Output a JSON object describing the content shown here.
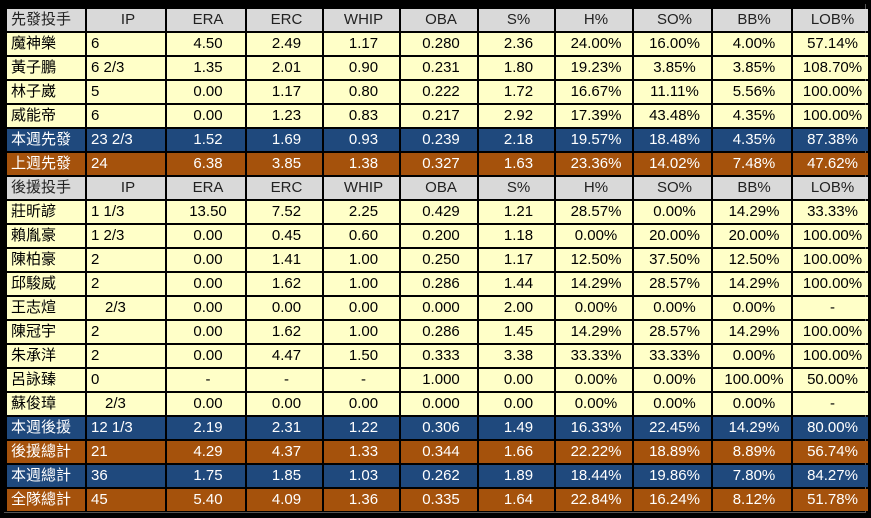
{
  "sections": [
    {
      "headers": [
        "先發投手",
        "IP",
        "ERA",
        "ERC",
        "WHIP",
        "OBA",
        "S%",
        "H%",
        "SO%",
        "BB%",
        "LOB%"
      ],
      "rows": [
        {
          "kind": "norm",
          "cells": [
            "魔神樂",
            "6",
            "4.50",
            "2.49",
            "1.17",
            "0.280",
            "2.36",
            "24.00%",
            "16.00%",
            "4.00%",
            "57.14%"
          ]
        },
        {
          "kind": "norm",
          "cells": [
            "黃子鵬",
            "6 2/3",
            "1.35",
            "2.01",
            "0.90",
            "0.231",
            "1.80",
            "19.23%",
            "3.85%",
            "3.85%",
            "108.70%"
          ]
        },
        {
          "kind": "norm",
          "cells": [
            "林子崴",
            "5",
            "0.00",
            "1.17",
            "0.80",
            "0.222",
            "1.72",
            "16.67%",
            "11.11%",
            "5.56%",
            "100.00%"
          ]
        },
        {
          "kind": "norm",
          "cells": [
            "威能帝",
            "6",
            "0.00",
            "1.23",
            "0.83",
            "0.217",
            "2.92",
            "17.39%",
            "43.48%",
            "4.35%",
            "100.00%"
          ]
        },
        {
          "kind": "blue",
          "cells": [
            "本週先發",
            "23 2/3",
            "1.52",
            "1.69",
            "0.93",
            "0.239",
            "2.18",
            "19.57%",
            "18.48%",
            "4.35%",
            "87.38%"
          ]
        },
        {
          "kind": "orange",
          "cells": [
            "上週先發",
            "24",
            "6.38",
            "3.85",
            "1.38",
            "0.327",
            "1.63",
            "23.36%",
            "14.02%",
            "7.48%",
            "47.62%"
          ]
        }
      ]
    },
    {
      "headers": [
        "後援投手",
        "IP",
        "ERA",
        "ERC",
        "WHIP",
        "OBA",
        "S%",
        "H%",
        "SO%",
        "BB%",
        "LOB%"
      ],
      "rows": [
        {
          "kind": "norm",
          "cells": [
            "莊昕諺",
            "1 1/3",
            "13.50",
            "7.52",
            "2.25",
            "0.429",
            "1.21",
            "28.57%",
            "0.00%",
            "14.29%",
            "33.33%"
          ]
        },
        {
          "kind": "norm",
          "cells": [
            "賴胤豪",
            "1 2/3",
            "0.00",
            "0.45",
            "0.60",
            "0.200",
            "1.18",
            "0.00%",
            "20.00%",
            "20.00%",
            "100.00%"
          ]
        },
        {
          "kind": "norm",
          "cells": [
            "陳柏豪",
            "2",
            "0.00",
            "1.41",
            "1.00",
            "0.250",
            "1.17",
            "12.50%",
            "37.50%",
            "12.50%",
            "100.00%"
          ]
        },
        {
          "kind": "norm",
          "cells": [
            "邱駿威",
            "2",
            "0.00",
            "1.62",
            "1.00",
            "0.286",
            "1.44",
            "14.29%",
            "28.57%",
            "14.29%",
            "100.00%"
          ]
        },
        {
          "kind": "norm",
          "cells": [
            "王志煊",
            "2/3",
            "0.00",
            "0.00",
            "0.00",
            "0.000",
            "2.00",
            "0.00%",
            "0.00%",
            "0.00%",
            "-"
          ]
        },
        {
          "kind": "norm",
          "cells": [
            "陳冠宇",
            "2",
            "0.00",
            "1.62",
            "1.00",
            "0.286",
            "1.45",
            "14.29%",
            "28.57%",
            "14.29%",
            "100.00%"
          ]
        },
        {
          "kind": "norm",
          "cells": [
            "朱承洋",
            "2",
            "0.00",
            "4.47",
            "1.50",
            "0.333",
            "3.38",
            "33.33%",
            "33.33%",
            "0.00%",
            "100.00%"
          ]
        },
        {
          "kind": "norm",
          "cells": [
            "呂詠臻",
            "0",
            "-",
            "-",
            "-",
            "1.000",
            "0.00",
            "0.00%",
            "0.00%",
            "100.00%",
            "50.00%"
          ]
        },
        {
          "kind": "norm",
          "cells": [
            "蘇俊璋",
            "2/3",
            "0.00",
            "0.00",
            "0.00",
            "0.000",
            "0.00",
            "0.00%",
            "0.00%",
            "0.00%",
            "-"
          ]
        },
        {
          "kind": "blue",
          "cells": [
            "本週後援",
            "12 1/3",
            "2.19",
            "2.31",
            "1.22",
            "0.306",
            "1.49",
            "16.33%",
            "22.45%",
            "14.29%",
            "80.00%"
          ]
        },
        {
          "kind": "orange",
          "cells": [
            "後援總計",
            "21",
            "4.29",
            "4.37",
            "1.33",
            "0.344",
            "1.66",
            "22.22%",
            "18.89%",
            "8.89%",
            "56.74%"
          ]
        },
        {
          "kind": "blue",
          "cells": [
            "本週總計",
            "36",
            "1.75",
            "1.85",
            "1.03",
            "0.262",
            "1.89",
            "18.44%",
            "19.86%",
            "7.80%",
            "84.27%"
          ]
        },
        {
          "kind": "orange",
          "cells": [
            "全隊總計",
            "45",
            "5.40",
            "4.09",
            "1.36",
            "0.335",
            "1.64",
            "22.84%",
            "16.24%",
            "8.12%",
            "51.78%"
          ]
        }
      ]
    }
  ]
}
